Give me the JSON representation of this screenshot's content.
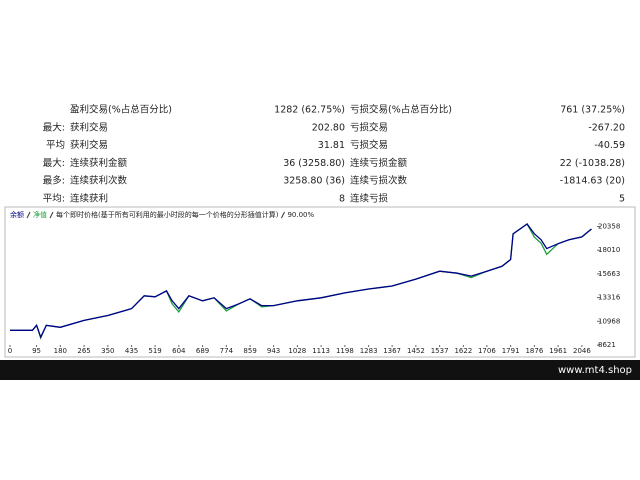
{
  "table": {
    "rows": [
      [
        null,
        "盈利交易(%占总百分比)",
        "1282 (62.75%)",
        "亏损交易(%占总百分比)",
        "761 (37.25%)"
      ],
      [
        "最大:",
        "获利交易",
        "202.80",
        "亏损交易",
        "-267.20"
      ],
      [
        "平均",
        "获利交易",
        "31.81",
        "亏损交易",
        "-40.59"
      ],
      [
        "最大:",
        "连续获利金额",
        "36 (3258.80)",
        "连续亏损金额",
        "22 (-1038.28)"
      ],
      [
        "最多:",
        "连续获利次数",
        "3258.80 (36)",
        "连续亏损次数",
        "-1814.63 (20)"
      ],
      [
        "平均:",
        "连续获利",
        "8",
        "连续亏损",
        "5"
      ]
    ]
  },
  "chart_data": {
    "type": "line",
    "note": "每个即时价格(基于所有可利用的最小时段的每一个价格的分形插值计算)",
    "quality": "90.00%",
    "x": [
      0,
      80,
      95,
      110,
      130,
      180,
      265,
      350,
      435,
      480,
      519,
      560,
      580,
      604,
      640,
      689,
      730,
      774,
      820,
      859,
      900,
      943,
      1028,
      1113,
      1198,
      1283,
      1367,
      1452,
      1537,
      1600,
      1650,
      1706,
      1760,
      1791,
      1800,
      1850,
      1876,
      1900,
      1920,
      1961,
      2000,
      2046,
      2080
    ],
    "series": [
      {
        "name": "余额",
        "color": "#00008b",
        "values": [
          10080,
          10080,
          10570,
          9400,
          10570,
          10370,
          11060,
          11540,
          12230,
          13490,
          13390,
          13980,
          13000,
          12230,
          13490,
          13000,
          13300,
          12230,
          12710,
          13200,
          12520,
          12520,
          13000,
          13300,
          13780,
          14170,
          14460,
          15150,
          15930,
          15730,
          15440,
          15930,
          16410,
          17090,
          19630,
          20600,
          19630,
          19040,
          18170,
          18650,
          19040,
          19330,
          20110
        ]
      },
      {
        "name": "净值",
        "color": "#1e9e3c",
        "values": [
          10080,
          10080,
          10570,
          9300,
          10570,
          10370,
          11060,
          11540,
          12230,
          13490,
          13390,
          13980,
          12700,
          11900,
          13490,
          13000,
          13300,
          12000,
          12710,
          13200,
          12400,
          12520,
          13000,
          13300,
          13780,
          14170,
          14460,
          15150,
          15930,
          15730,
          15300,
          15930,
          16410,
          17090,
          19630,
          20600,
          19300,
          18700,
          17600,
          18650,
          19040,
          19330,
          20110
        ]
      }
    ],
    "xlim": [
      0,
      2100
    ],
    "ylim": [
      8621,
      21000
    ],
    "xticks": [
      0,
      95,
      180,
      265,
      350,
      435,
      519,
      604,
      689,
      774,
      859,
      943,
      1028,
      1113,
      1198,
      1283,
      1367,
      1452,
      1537,
      1622,
      1706,
      1791,
      1876,
      1961,
      2046
    ],
    "yticks": [
      8621,
      10968,
      13316,
      15663,
      18010,
      20358
    ]
  },
  "footer": "www.mt4.shop"
}
